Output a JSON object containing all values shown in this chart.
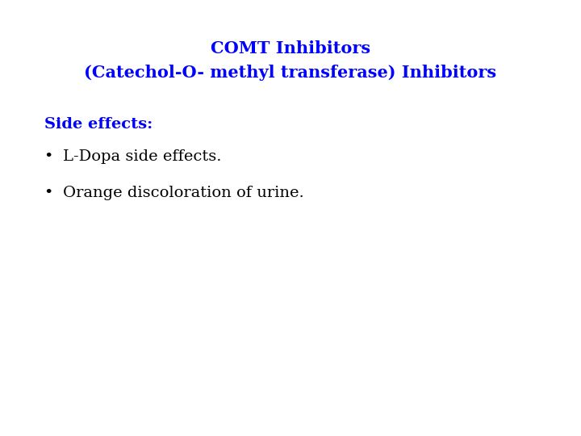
{
  "title_line1": "COMT Inhibitors",
  "title_line2": "(Catechol-O- methyl transferase) Inhibitors",
  "title_color": "#0000FF",
  "title_fontsize": 15,
  "title_fontweight": "bold",
  "section_label": "Side effects:",
  "section_color": "#0000FF",
  "section_fontsize": 14,
  "section_fontweight": "bold",
  "bullets": [
    "L-Dopa side effects.",
    "Orange discoloration of urine."
  ],
  "bullet_color": "#000000",
  "bullet_fontsize": 14,
  "background_color": "#ffffff"
}
